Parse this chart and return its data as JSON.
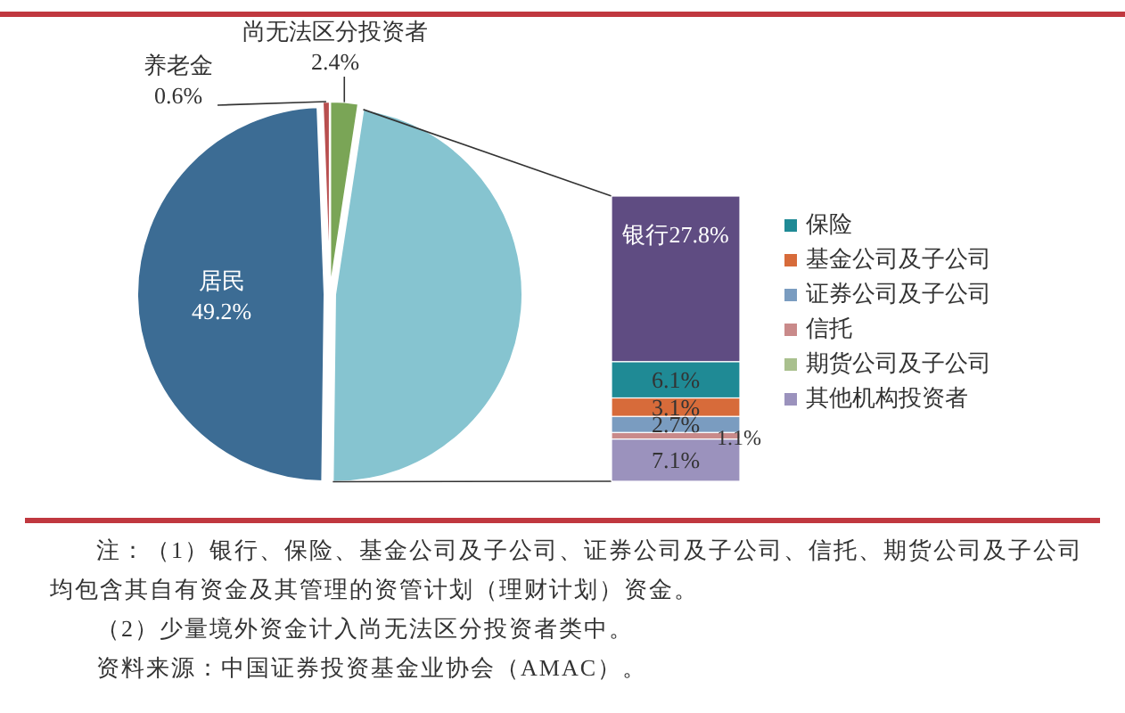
{
  "chart_data": [
    {
      "type": "pie",
      "categories": [
        "尚无法区分投资者",
        null,
        "居民",
        "养老金"
      ],
      "values": [
        2.4,
        47.8,
        49.2,
        0.6
      ],
      "colors": [
        "#7aa556",
        "#86c4d0",
        "#3c6c94",
        "#b84f4f"
      ],
      "value_labels": [
        "2.4%",
        null,
        "49.2%",
        "0.6%"
      ],
      "annotations": [
        "注：（1）银行、保险、基金公司及子公司、证券公司及子公司、信托、期货公司及子公司均包含其自有资金及其管理的资管计划（理财计划）资金。",
        "（2）少量境外资金计入尚无法区分投资者类中。",
        "资料来源：中国证券投资基金业协会（AMAC）。"
      ]
    },
    {
      "type": "bar",
      "stacked": true,
      "categories": [
        null
      ],
      "legend": "right",
      "series": [
        {
          "name": "其他机构投资者",
          "color": "#9b92bd",
          "values": [
            7.1
          ],
          "value_labels": [
            "7.1%"
          ]
        },
        {
          "name": "期货公司及子公司",
          "color": "#a9c08e",
          "values": [
            null
          ]
        },
        {
          "name": "信托",
          "color": "#c98a8a",
          "values": [
            1.1
          ],
          "value_labels": [
            "1.1%"
          ]
        },
        {
          "name": "证券公司及子公司",
          "color": "#7a9cc0",
          "values": [
            2.7
          ],
          "value_labels": [
            "2.7%"
          ]
        },
        {
          "name": "基金公司及子公司",
          "color": "#d76b3a",
          "values": [
            3.1
          ],
          "value_labels": [
            "3.1%"
          ]
        },
        {
          "name": "保险",
          "color": "#1f8a95",
          "values": [
            6.1
          ],
          "value_labels": [
            "6.1%"
          ]
        },
        {
          "color": "#5f4c82",
          "values": [
            27.8
          ],
          "value_labels": [
            "银行27.8%"
          ]
        }
      ]
    }
  ]
}
